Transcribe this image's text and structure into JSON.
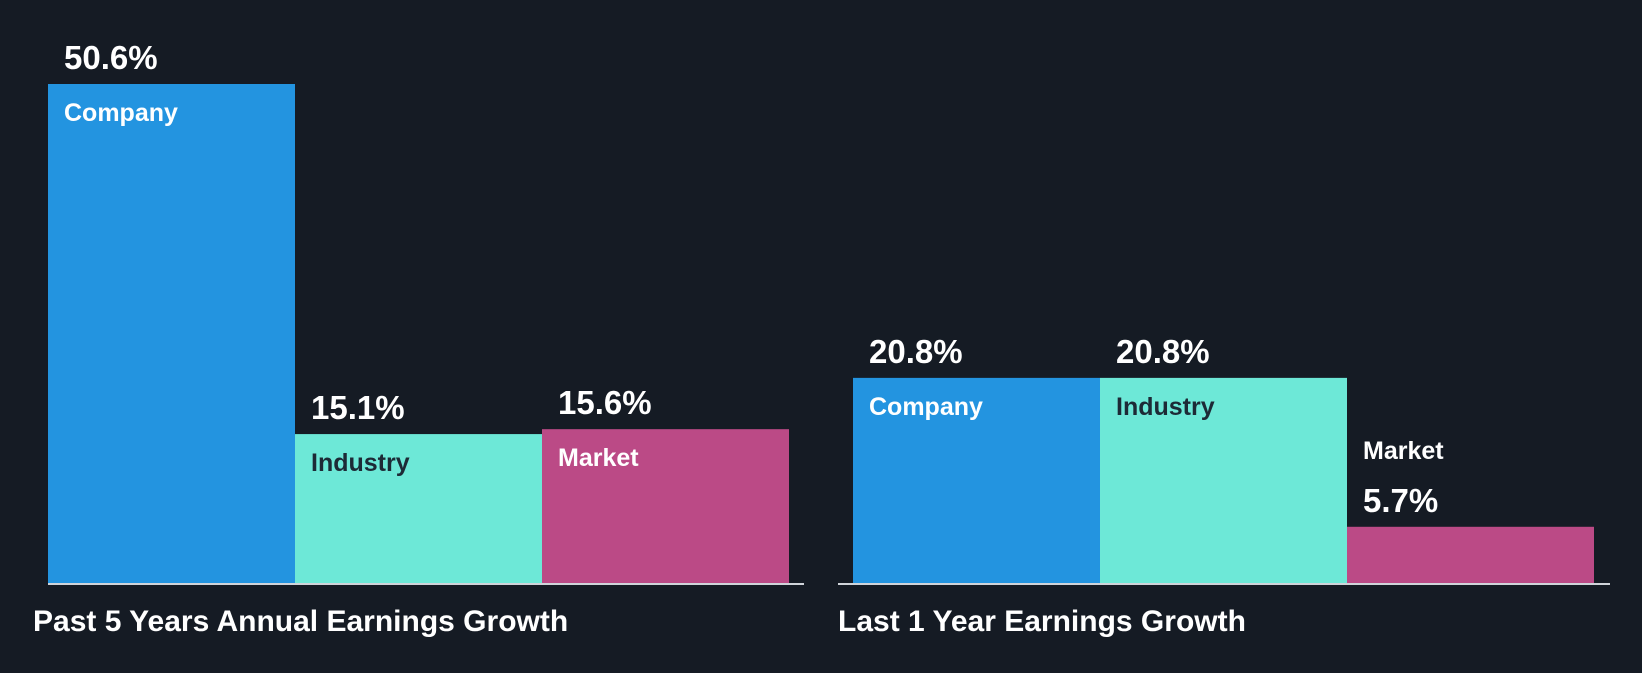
{
  "chart_data": [
    {
      "type": "bar",
      "title": "Past 5 Years Annual Earnings Growth",
      "categories": [
        "Company",
        "Industry",
        "Market"
      ],
      "values": [
        50.6,
        15.1,
        15.6
      ],
      "value_labels": [
        "50.6%",
        "15.1%",
        "15.6%"
      ],
      "ylim": [
        0,
        50.6
      ],
      "grid": false,
      "legend": "none"
    },
    {
      "type": "bar",
      "title": "Last 1 Year Earnings Growth",
      "categories": [
        "Company",
        "Industry",
        "Market"
      ],
      "values": [
        20.8,
        20.8,
        5.7
      ],
      "value_labels": [
        "20.8%",
        "20.8%",
        "5.7%"
      ],
      "ylim": [
        0,
        50.6
      ],
      "grid": false,
      "legend": "none"
    }
  ],
  "colors": {
    "background": "#151b24",
    "company": "#2394e0",
    "industry": "#6de8d7",
    "market": "#bb4a86",
    "baseline": "#d0d4da"
  }
}
